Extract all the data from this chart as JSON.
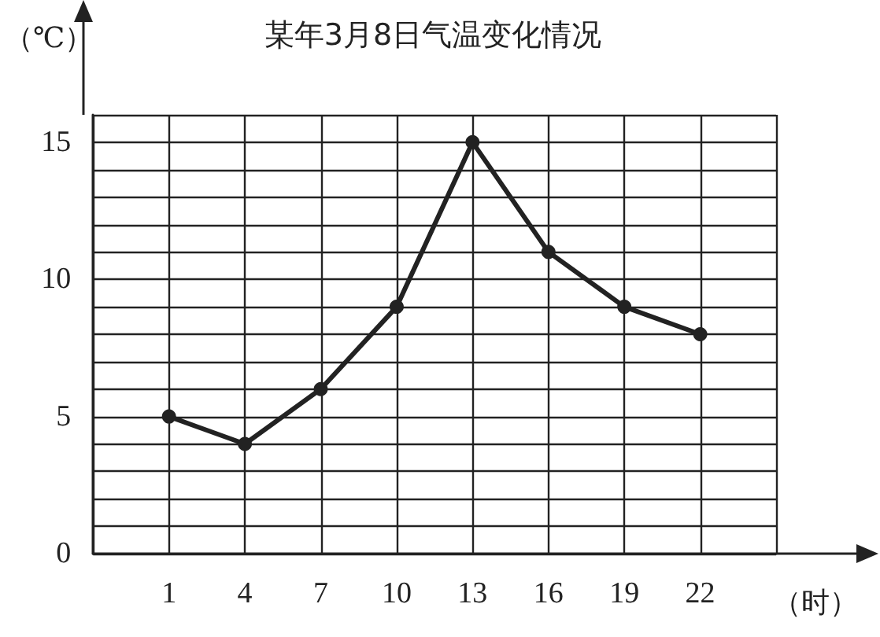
{
  "chart_data": {
    "type": "line",
    "title": "某年3月8日气温变化情况",
    "xlabel": "（时）",
    "ylabel": "（℃）",
    "x": [
      1,
      4,
      7,
      10,
      13,
      16,
      19,
      22
    ],
    "series": [
      {
        "color": "#222222",
        "values": [
          5,
          4,
          6,
          9,
          15,
          11,
          9,
          8
        ]
      }
    ],
    "xlim": [
      -2,
      25
    ],
    "xticks": [
      {
        "value": -2,
        "label": null
      },
      1,
      4,
      7,
      10,
      13,
      16,
      19,
      22,
      {
        "value": 25,
        "label": null
      }
    ],
    "ylim": [
      0,
      16
    ],
    "yticks": [
      0,
      {
        "value": 1,
        "label": null
      },
      {
        "value": 2,
        "label": null
      },
      {
        "value": 3,
        "label": null
      },
      {
        "value": 4,
        "label": null
      },
      5,
      {
        "value": 6,
        "label": null
      },
      {
        "value": 7,
        "label": null
      },
      {
        "value": 8,
        "label": null
      },
      {
        "value": 9,
        "label": null
      },
      10,
      {
        "value": 11,
        "label": null
      },
      {
        "value": 12,
        "label": null
      },
      {
        "value": 13,
        "label": null
      },
      {
        "value": 14,
        "label": null
      },
      15,
      {
        "value": 16,
        "label": null
      }
    ],
    "grid": true,
    "marker": "circle",
    "line_style": "solid"
  }
}
